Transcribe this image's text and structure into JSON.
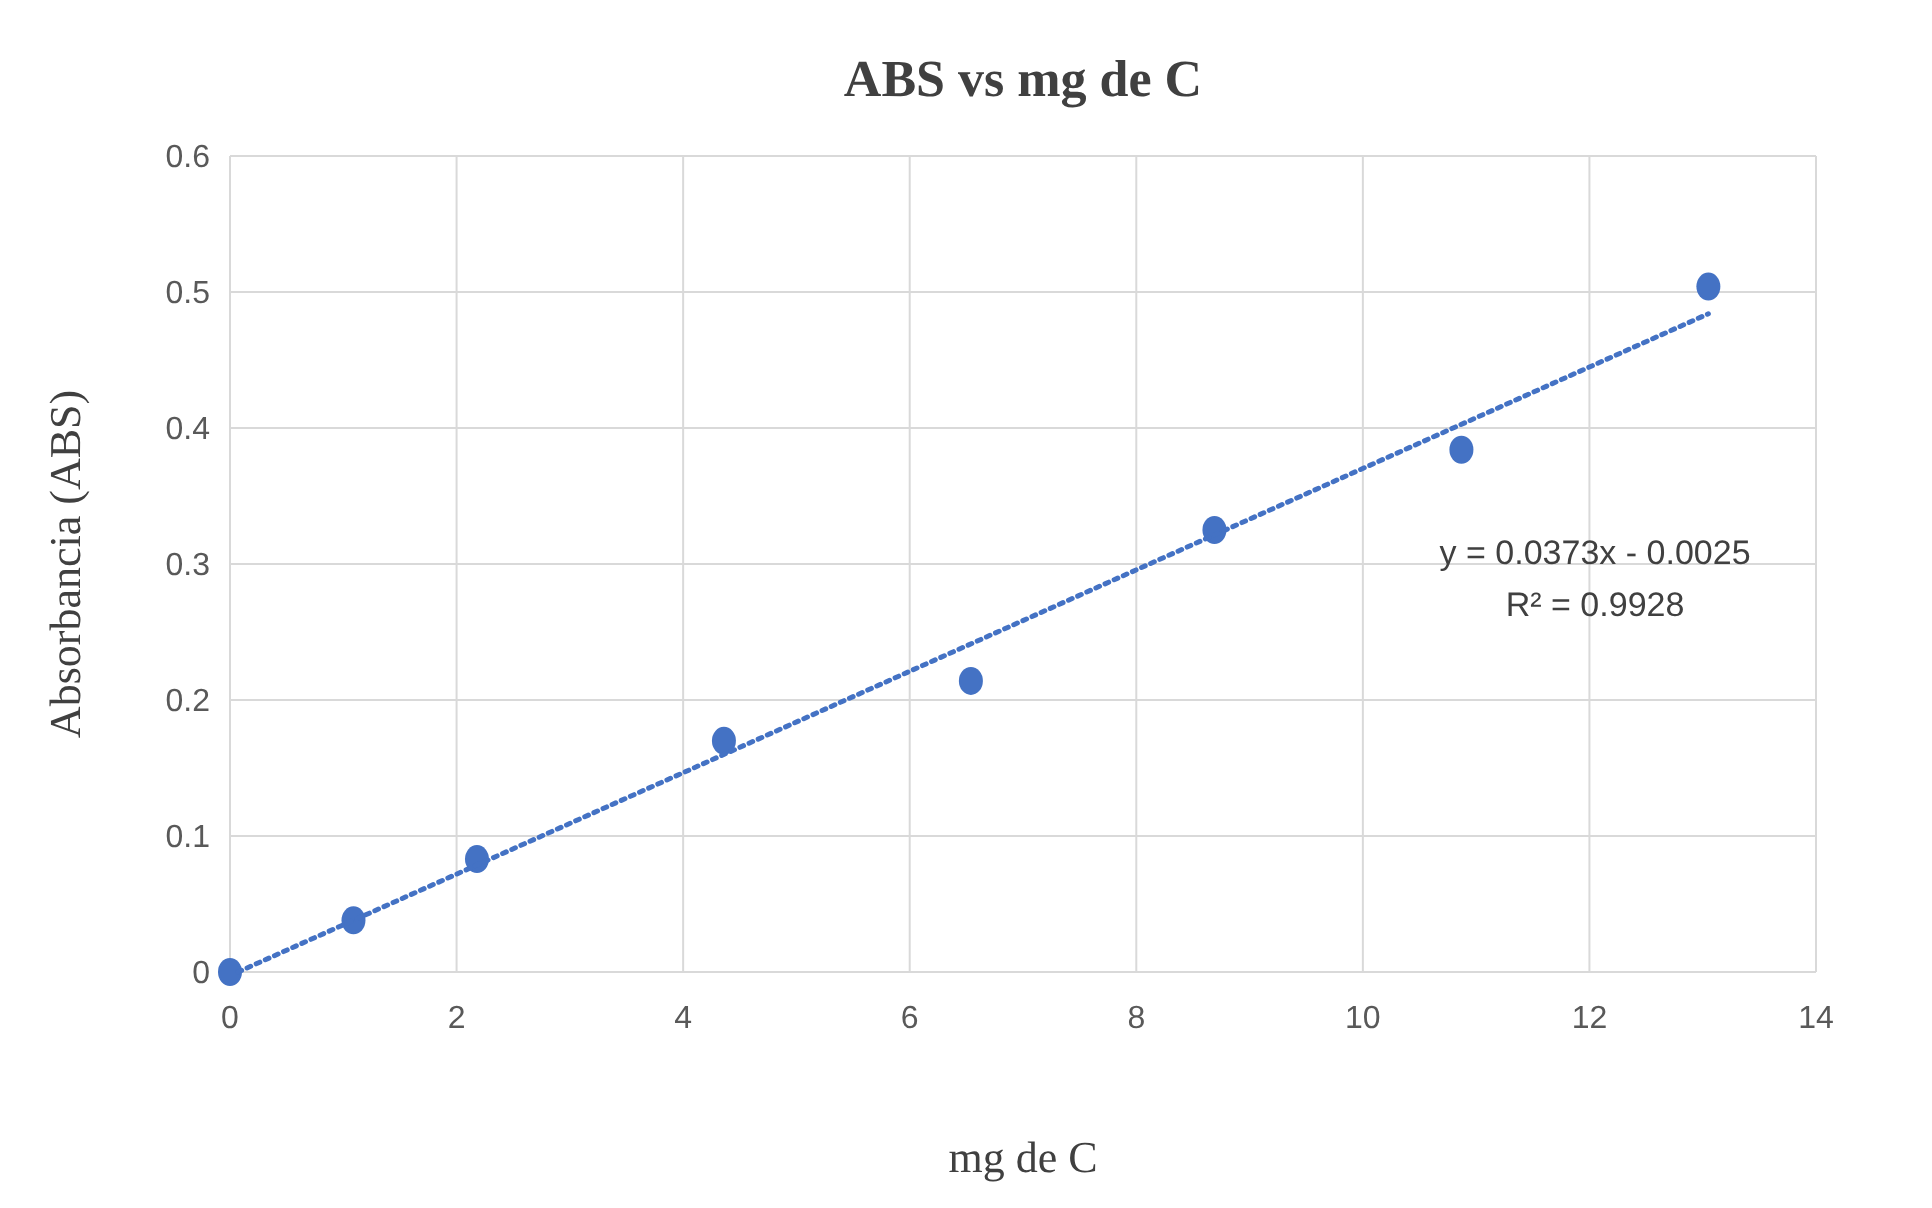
{
  "chart_data": {
    "type": "scatter",
    "title": "ABS vs mg de C",
    "xlabel": "mg de C",
    "ylabel": "Absorbancia (ABS)",
    "xlim": [
      0,
      14
    ],
    "xticks": [
      0,
      2,
      4,
      6,
      8,
      10,
      12,
      14
    ],
    "ylim": [
      0,
      0.6
    ],
    "yticks": [
      0,
      0.1,
      0.2,
      0.3,
      0.4,
      0.5,
      0.6
    ],
    "grid": true,
    "series": [
      {
        "marker": "circle",
        "color": "#4472c4",
        "x": [
          0,
          1.09,
          2.18,
          4.36,
          6.54,
          8.69,
          10.87,
          13.05
        ],
        "values": [
          0,
          0.038,
          0.083,
          0.17,
          0.214,
          0.325,
          0.384,
          0.504
        ]
      },
      {
        "type": "line",
        "color": "#4472c4",
        "line_style": "dotted",
        "x": [
          0.07,
          13.05
        ],
        "values": [
          0,
          0.484
        ]
      }
    ],
    "annotations": [
      "y = 0.0373x - 0.0025",
      "R² = 0.9928"
    ]
  }
}
